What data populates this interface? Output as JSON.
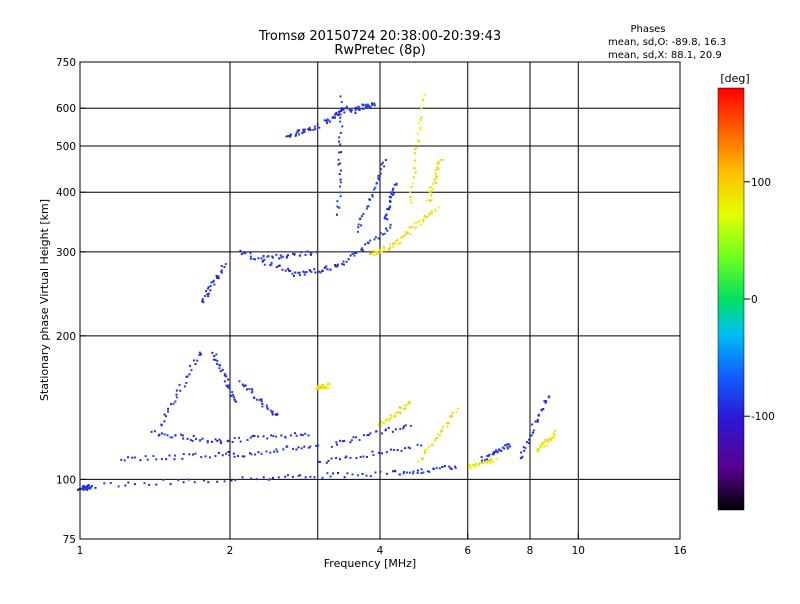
{
  "header": {
    "title_line1": "Tromsø 20150724 20:38:00-20:39:43",
    "title_line2": "RwPretec (8p)"
  },
  "phases": {
    "heading": "Phases",
    "line_o": "mean, sd,O: -89.8, 16.3",
    "line_x": "mean, sd,X:  88.1, 20.9"
  },
  "chart_data": {
    "type": "scatter",
    "xlabel": "Frequency [MHz]",
    "ylabel": "Stationary phase Virtual Height [km]",
    "xscale": "log",
    "yscale": "log",
    "xlim": [
      1,
      16
    ],
    "ylim": [
      75,
      750
    ],
    "x_ticks": [
      1,
      2,
      4,
      6,
      8,
      10,
      16
    ],
    "x_tick_labels": [
      "1",
      "2",
      "4",
      "6",
      "8",
      "10",
      "16"
    ],
    "y_ticks": [
      75,
      100,
      200,
      300,
      400,
      500,
      600,
      750
    ],
    "y_tick_labels": [
      "75",
      "100",
      "200",
      "300",
      "400",
      "500",
      "600",
      "750"
    ],
    "x_gridlines": [
      2,
      3,
      4,
      6,
      8,
      10
    ],
    "y_gridlines": [
      100,
      200,
      300,
      400,
      500,
      600
    ],
    "grid": true,
    "colorbar": {
      "label": "[deg]",
      "min": -180,
      "max": 180,
      "ticks": [
        100,
        0,
        -100
      ],
      "tick_labels": [
        "100",
        "0",
        "-100"
      ]
    },
    "series": [
      {
        "mode": "O",
        "phase_mean": -89.8,
        "phase_sd": 16.3,
        "traces": [
          {
            "f_start": 1.0,
            "f_end": 1.05,
            "h_start": 96,
            "h_end": 96
          },
          {
            "f_start": 1.05,
            "f_end": 2.4,
            "h_start": 97,
            "h_end": 101
          },
          {
            "f_start": 2.4,
            "f_end": 4.3,
            "h_start": 101,
            "h_end": 103
          },
          {
            "f_start": 4.3,
            "f_end": 5.7,
            "h_start": 103,
            "h_end": 106
          },
          {
            "f_start": 1.2,
            "f_end": 2.0,
            "h_start": 110,
            "h_end": 113
          },
          {
            "f_start": 2.0,
            "f_end": 3.0,
            "h_start": 112,
            "h_end": 118
          },
          {
            "f_start": 3.0,
            "f_end": 4.8,
            "h_start": 108,
            "h_end": 118
          },
          {
            "f_start": 1.4,
            "f_end": 1.9,
            "h_start": 125,
            "h_end": 120
          },
          {
            "f_start": 1.9,
            "f_end": 2.9,
            "h_start": 120,
            "h_end": 125
          },
          {
            "f_start": 3.2,
            "f_end": 4.6,
            "h_start": 118,
            "h_end": 130
          },
          {
            "f_start": 1.45,
            "f_end": 1.75,
            "h_start": 130,
            "h_end": 185
          },
          {
            "f_start": 1.85,
            "f_end": 2.05,
            "h_start": 185,
            "h_end": 145
          },
          {
            "f_start": 2.1,
            "f_end": 2.5,
            "h_start": 160,
            "h_end": 135
          },
          {
            "f_start": 6.4,
            "f_end": 7.3,
            "h_start": 110,
            "h_end": 118
          },
          {
            "f_start": 7.6,
            "f_end": 8.7,
            "h_start": 110,
            "h_end": 150
          },
          {
            "f_start": 1.75,
            "f_end": 1.95,
            "h_start": 235,
            "h_end": 280
          },
          {
            "f_start": 2.1,
            "f_end": 2.7,
            "h_start": 300,
            "h_end": 270
          },
          {
            "f_start": 2.7,
            "f_end": 3.3,
            "h_start": 268,
            "h_end": 280
          },
          {
            "f_start": 2.3,
            "f_end": 3.0,
            "h_start": 290,
            "h_end": 300
          },
          {
            "f_start": 3.3,
            "f_end": 4.2,
            "h_start": 280,
            "h_end": 340
          },
          {
            "f_start": 3.6,
            "f_end": 4.1,
            "h_start": 330,
            "h_end": 470
          },
          {
            "f_start": 4.1,
            "f_end": 4.3,
            "h_start": 350,
            "h_end": 420
          },
          {
            "f_start": 2.6,
            "f_end": 3.0,
            "h_start": 525,
            "h_end": 550
          },
          {
            "f_start": 3.1,
            "f_end": 3.45,
            "h_start": 560,
            "h_end": 600
          },
          {
            "f_start": 3.5,
            "f_end": 3.9,
            "h_start": 590,
            "h_end": 615
          },
          {
            "f_start": 3.3,
            "f_end": 3.35,
            "h_start": 360,
            "h_end": 630
          }
        ]
      },
      {
        "mode": "X",
        "phase_mean": 88.1,
        "phase_sd": 20.9,
        "traces": [
          {
            "f_start": 3.0,
            "f_end": 3.15,
            "h_start": 155,
            "h_end": 157
          },
          {
            "f_start": 4.0,
            "f_end": 4.6,
            "h_start": 130,
            "h_end": 145
          },
          {
            "f_start": 4.8,
            "f_end": 5.7,
            "h_start": 110,
            "h_end": 140
          },
          {
            "f_start": 6.0,
            "f_end": 6.8,
            "h_start": 106,
            "h_end": 110
          },
          {
            "f_start": 8.3,
            "f_end": 9.0,
            "h_start": 115,
            "h_end": 125
          },
          {
            "f_start": 3.8,
            "f_end": 4.4,
            "h_start": 295,
            "h_end": 315
          },
          {
            "f_start": 4.4,
            "f_end": 5.2,
            "h_start": 320,
            "h_end": 370
          },
          {
            "f_start": 4.6,
            "f_end": 4.9,
            "h_start": 380,
            "h_end": 640
          },
          {
            "f_start": 5.0,
            "f_end": 5.3,
            "h_start": 380,
            "h_end": 470
          }
        ]
      }
    ]
  }
}
